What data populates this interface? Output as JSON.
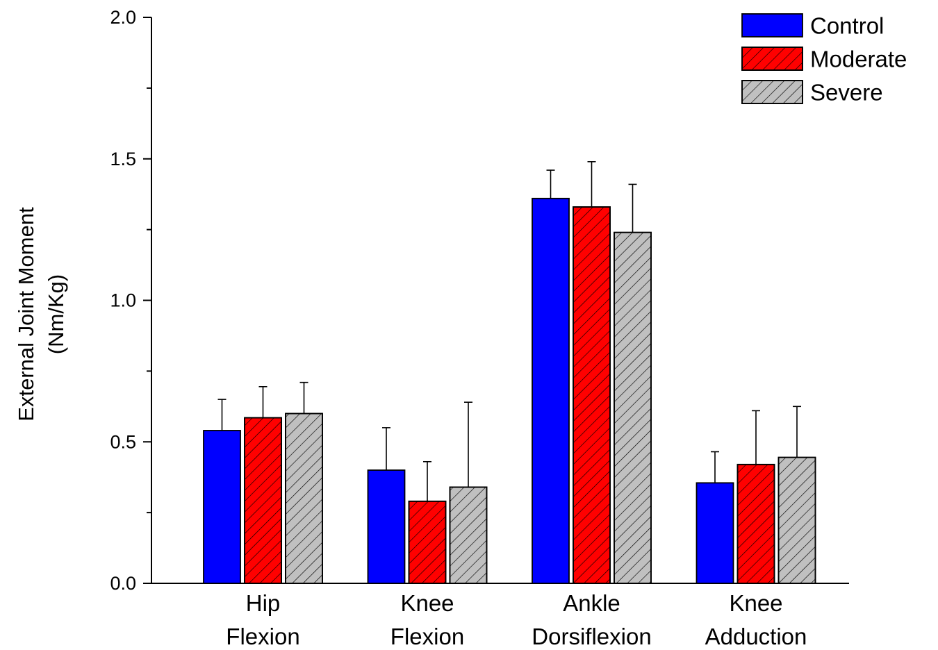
{
  "chart_data": {
    "type": "bar",
    "categories": [
      [
        "Hip",
        "Flexion"
      ],
      [
        "Knee",
        "Flexion"
      ],
      [
        "Ankle",
        "Dorsiflexion"
      ],
      [
        "Knee",
        "Adduction"
      ]
    ],
    "series": [
      {
        "name": "Control",
        "fill": "#0000ff",
        "hatch": false,
        "values": [
          0.54,
          0.4,
          1.36,
          0.355
        ],
        "errors": [
          0.11,
          0.15,
          0.1,
          0.11
        ]
      },
      {
        "name": "Moderate",
        "fill": "#ff0000",
        "hatch": true,
        "values": [
          0.585,
          0.29,
          1.33,
          0.42
        ],
        "errors": [
          0.11,
          0.14,
          0.16,
          0.19
        ]
      },
      {
        "name": "Severe",
        "fill": "#c0c0c0",
        "hatch": true,
        "values": [
          0.6,
          0.34,
          1.24,
          0.445
        ],
        "errors": [
          0.11,
          0.3,
          0.17,
          0.18
        ]
      }
    ],
    "ylabel_lines": [
      "External Joint Moment",
      "(Nm/Kg)"
    ],
    "xlabel": "",
    "ylim": [
      0,
      2.0
    ],
    "yticks": [
      "0.0",
      "0.5",
      "1.0",
      "1.5",
      "2.0"
    ],
    "minor_ticks": true,
    "grid": false,
    "legend_position": "top-right",
    "colors": {
      "control": "#0000ff",
      "moderate": "#ff0000",
      "severe": "#c0c0c0",
      "hatch": "#000000",
      "axis": "#000000"
    }
  }
}
